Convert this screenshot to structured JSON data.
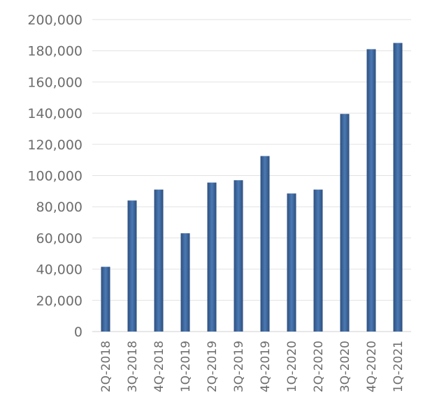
{
  "chart_data": {
    "type": "bar",
    "title": "",
    "xlabel": "",
    "ylabel": "",
    "categories": [
      "2Q-2018",
      "3Q-2018",
      "4Q-2018",
      "1Q-2019",
      "2Q-2019",
      "3Q-2019",
      "4Q-2019",
      "1Q-2020",
      "2Q-2020",
      "3Q-2020",
      "4Q-2020",
      "1Q-2021"
    ],
    "values": [
      41500,
      84000,
      91000,
      63000,
      95500,
      97000,
      112500,
      88500,
      91000,
      139500,
      181000,
      185000
    ],
    "ylim": [
      0,
      200000
    ],
    "yticks": [
      0,
      20000,
      40000,
      60000,
      80000,
      100000,
      120000,
      140000,
      160000,
      180000,
      200000
    ],
    "ytick_labels": [
      "0",
      "20,000",
      "40,000",
      "60,000",
      "80,000",
      "100,000",
      "120,000",
      "140,000",
      "160,000",
      "180,000",
      "200,000"
    ],
    "grid": true,
    "legend": "none",
    "colors": {
      "bar_edge": "#2e4f7e",
      "bar_center": "#4a79b4"
    }
  }
}
